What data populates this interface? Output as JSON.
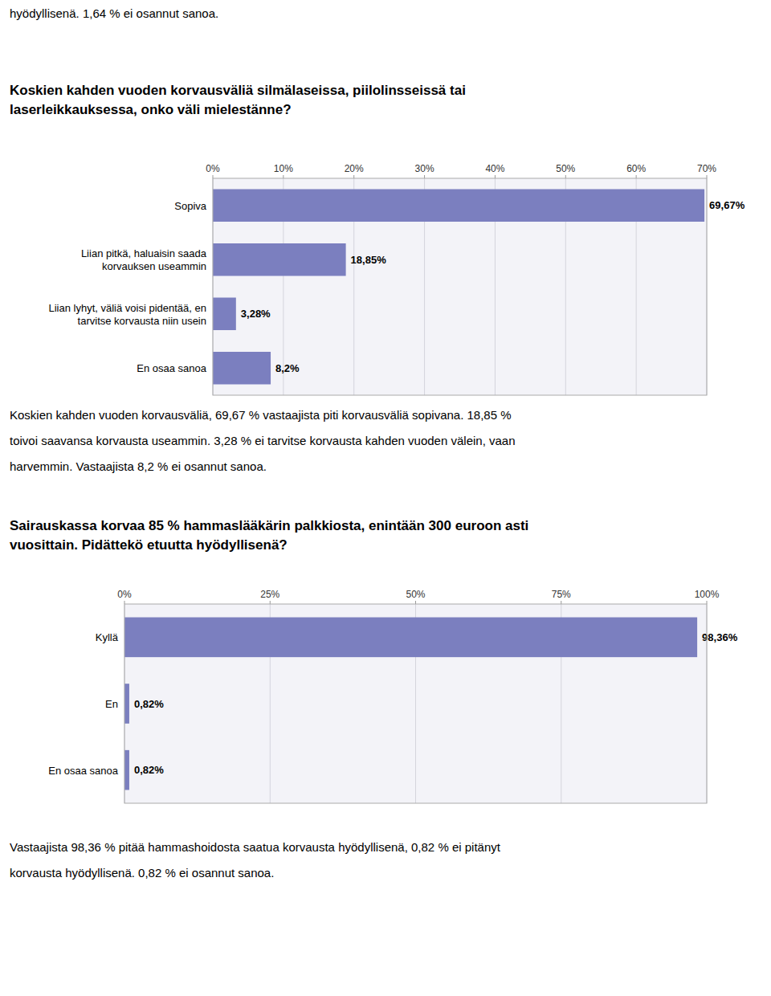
{
  "annotations": [
    "hyödyllisenä. 1,64 % ei osannut sanoa."
  ],
  "chart_data": [
    {
      "type": "bar",
      "orientation": "horizontal",
      "title": "Koskien kahden vuoden korvausväliä silmälaseissa, piilolinsseissä tai\nlaserleikkauksessa, onko väli mielestänne?",
      "categories": [
        "Sopiva",
        "Liian pitkä, haluaisin saada\nkorvauksen useammin",
        "Liian lyhyt, väliä voisi pidentää, en\ntarvitse korvausta niin usein",
        "En osaa sanoa"
      ],
      "values": [
        69.67,
        18.85,
        3.28,
        8.2
      ],
      "value_labels": [
        "69,67%",
        "18,85%",
        "3,28%",
        "8,2%"
      ],
      "data_labels": true,
      "color": "#7B7FBF",
      "xlim": [
        0,
        70
      ],
      "xticks": [
        {
          "value": 0,
          "label": "0%"
        },
        {
          "value": 10,
          "label": "10%"
        },
        {
          "value": 20,
          "label": "20%"
        },
        {
          "value": 30,
          "label": "30%"
        },
        {
          "value": 40,
          "label": "40%"
        },
        {
          "value": 50,
          "label": "50%"
        },
        {
          "value": 60,
          "label": "60%"
        },
        {
          "value": 70,
          "label": "70%"
        }
      ],
      "grid": true,
      "annotations": [
        "Koskien kahden vuoden korvausväliä, 69,67 % vastaajista piti korvausväliä sopivana. 18,85 %",
        "toivoi saavansa korvausta useammin. 3,28 % ei tarvitse korvausta kahden vuoden välein, vaan",
        "harvemmin. Vastaajista 8,2 % ei osannut sanoa."
      ]
    },
    {
      "type": "bar",
      "orientation": "horizontal",
      "title": "Sairauskassa korvaa 85 % hammaslääkärin palkkiosta, enintään 300 euroon asti\nvuosittain. Pidättekö etuutta hyödyllisenä?",
      "categories": [
        "Kyllä",
        "En",
        "En osaa sanoa"
      ],
      "values": [
        98.36,
        0.82,
        0.82
      ],
      "value_labels": [
        "98,36%",
        "0,82%",
        "0,82%"
      ],
      "data_labels": true,
      "color": "#7B7FBF",
      "xlim": [
        0,
        100
      ],
      "xticks": [
        {
          "value": 0,
          "label": "0%"
        },
        {
          "value": 25,
          "label": "25%"
        },
        {
          "value": 50,
          "label": "50%"
        },
        {
          "value": 75,
          "label": "75%"
        },
        {
          "value": 100,
          "label": "100%"
        }
      ],
      "grid": true,
      "annotations": [
        "Vastaajista 98,36 % pitää hammashoidosta saatua korvausta hyödyllisenä, 0,82 % ei pitänyt",
        "korvausta hyödyllisenä. 0,82 % ei osannut sanoa."
      ]
    }
  ]
}
